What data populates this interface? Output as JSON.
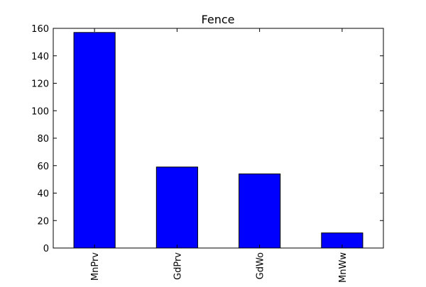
{
  "chart_data": {
    "type": "bar",
    "title": "Fence",
    "xlabel": "",
    "ylabel": "",
    "categories": [
      "MnPrv",
      "GdPrv",
      "GdWo",
      "MnWw"
    ],
    "values": [
      157,
      59,
      54,
      11
    ],
    "ylim": [
      0,
      160
    ],
    "yticks": [
      0,
      20,
      40,
      60,
      80,
      100,
      120,
      140,
      160
    ],
    "bar_color": "#0000ff",
    "edge_color": "#000000",
    "grid": false,
    "legend": "none"
  }
}
